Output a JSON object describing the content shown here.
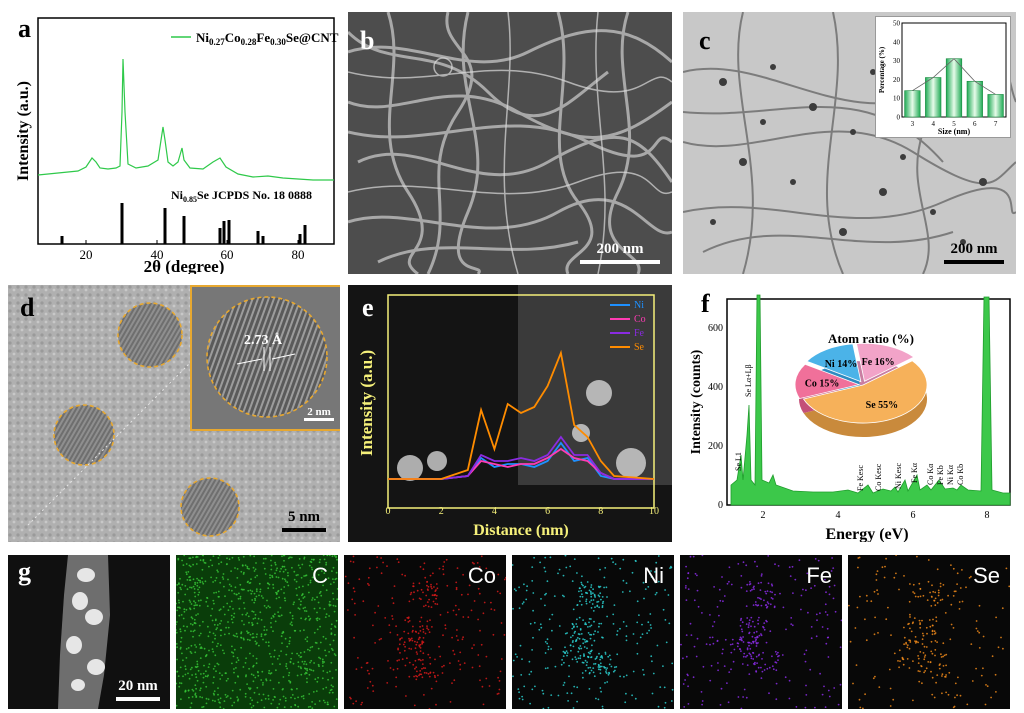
{
  "panels": {
    "a": {
      "label": "a",
      "legend": "Ni0.27Co0.28Fe0.30Se@CNT",
      "legend_parts": {
        "ni": "Ni",
        "ni_sub": "0.27",
        "co": "Co",
        "co_sub": "0.28",
        "fe": "Fe",
        "fe_sub": "0.30",
        "rest": "Se@CNT"
      },
      "ref_label": "Ni0.85Se JCPDS No. 18 0888",
      "ref_parts": {
        "ni": "Ni",
        "ni_sub": "0.85",
        "rest": "Se JCPDS No. 18 0888"
      },
      "ylabel": "Intensity (a.u.)",
      "xlabel": "2θ (degree)",
      "xticks": [
        "20",
        "40",
        "60",
        "80"
      ]
    },
    "b": {
      "label": "b",
      "scale": "200 nm"
    },
    "c": {
      "label": "c",
      "scale": "200 nm"
    },
    "d": {
      "label": "d",
      "scale": "5 nm",
      "inset_scale": "2 nm",
      "d_spacing": "2.73 Å"
    },
    "e": {
      "label": "e",
      "ylabel": "Intensity (a.u.)",
      "xlabel": "Distance (nm)",
      "xticks": [
        "0",
        "2",
        "4",
        "6",
        "8",
        "10"
      ]
    },
    "f": {
      "label": "f",
      "ylabel": "Intensity (counts)",
      "xlabel": "Energy (eV)",
      "xticks": [
        "2",
        "4",
        "6",
        "8"
      ],
      "yticks": [
        "0",
        "200",
        "400",
        "600"
      ],
      "pie_title": "Atom ratio (%)"
    },
    "g": {
      "label": "g",
      "scale": "20 nm"
    }
  },
  "maps": [
    "C",
    "Co",
    "Ni",
    "Fe",
    "Se"
  ],
  "colors": {
    "green": "#2fc94a",
    "ni": "#1e90ff",
    "co": "#ff3cb4",
    "fe": "#8a2be2",
    "se": "#ff8c00"
  },
  "chart_data": [
    {
      "type": "bar",
      "title": "",
      "categories": [
        "3",
        "4",
        "5",
        "6",
        "7"
      ],
      "values": [
        14,
        21,
        31,
        19,
        12
      ],
      "xlabel": "Size (nm)",
      "ylabel": "Percentage (%)",
      "ylim": [
        0,
        50
      ],
      "yticks": [
        "0",
        "10",
        "20",
        "30",
        "40",
        "50"
      ]
    },
    {
      "type": "pie",
      "title": "Atom ratio (%)",
      "categories": [
        "Se",
        "Co",
        "Ni",
        "Fe"
      ],
      "values": [
        55,
        15,
        14,
        16
      ],
      "labels": [
        "Se 55%",
        "Co 15%",
        "Ni 14%",
        "Fe 16%"
      ]
    },
    {
      "type": "line",
      "title": "",
      "xlabel": "Distance (nm)",
      "ylabel": "Intensity (a.u.)",
      "xlim": [
        0,
        10
      ],
      "series": [
        {
          "name": "Ni",
          "x": [
            0,
            1,
            2,
            3,
            3.5,
            4,
            4.5,
            5,
            5.5,
            6,
            6.5,
            7,
            7.5,
            8,
            8.5,
            10
          ],
          "y": [
            2,
            2,
            2,
            3,
            9,
            6,
            7,
            7,
            6,
            8,
            14,
            8,
            9,
            3,
            2,
            2
          ]
        },
        {
          "name": "Co",
          "x": [
            0,
            1,
            2,
            3,
            3.5,
            4,
            4.5,
            5,
            5.5,
            6,
            6.5,
            7,
            7.5,
            8,
            8.5,
            10
          ],
          "y": [
            2,
            2,
            2,
            3,
            8,
            7,
            6,
            7,
            7,
            9,
            12,
            9,
            8,
            4,
            2,
            2
          ]
        },
        {
          "name": "Fe",
          "x": [
            0,
            1,
            2,
            3,
            3.5,
            4,
            4.5,
            5,
            5.5,
            6,
            6.5,
            7,
            7.5,
            8,
            8.5,
            10
          ],
          "y": [
            2,
            2,
            2,
            3,
            10,
            8,
            8,
            9,
            8,
            10,
            16,
            10,
            10,
            4,
            2,
            2
          ]
        },
        {
          "name": "Se",
          "x": [
            0,
            1,
            2,
            3,
            3.5,
            4,
            4.5,
            5,
            5.5,
            6,
            6.5,
            7,
            7.5,
            8,
            8.5,
            10
          ],
          "y": [
            2,
            2,
            2,
            5,
            25,
            12,
            27,
            24,
            26,
            33,
            44,
            20,
            16,
            8,
            3,
            2
          ]
        }
      ]
    },
    {
      "type": "line",
      "title": "",
      "xlabel": "Energy (eV)",
      "ylabel": "Intensity (counts)",
      "ylim": [
        0,
        700
      ],
      "peak_labels": [
        "Se L1",
        "Se Lα+Lβ",
        "Fe Kesc",
        "Co Kesc",
        "Ni Kesc",
        "Fe Kα",
        "Co Kα",
        "Fe Kb",
        "Ni Kα",
        "Co Kb"
      ]
    }
  ]
}
